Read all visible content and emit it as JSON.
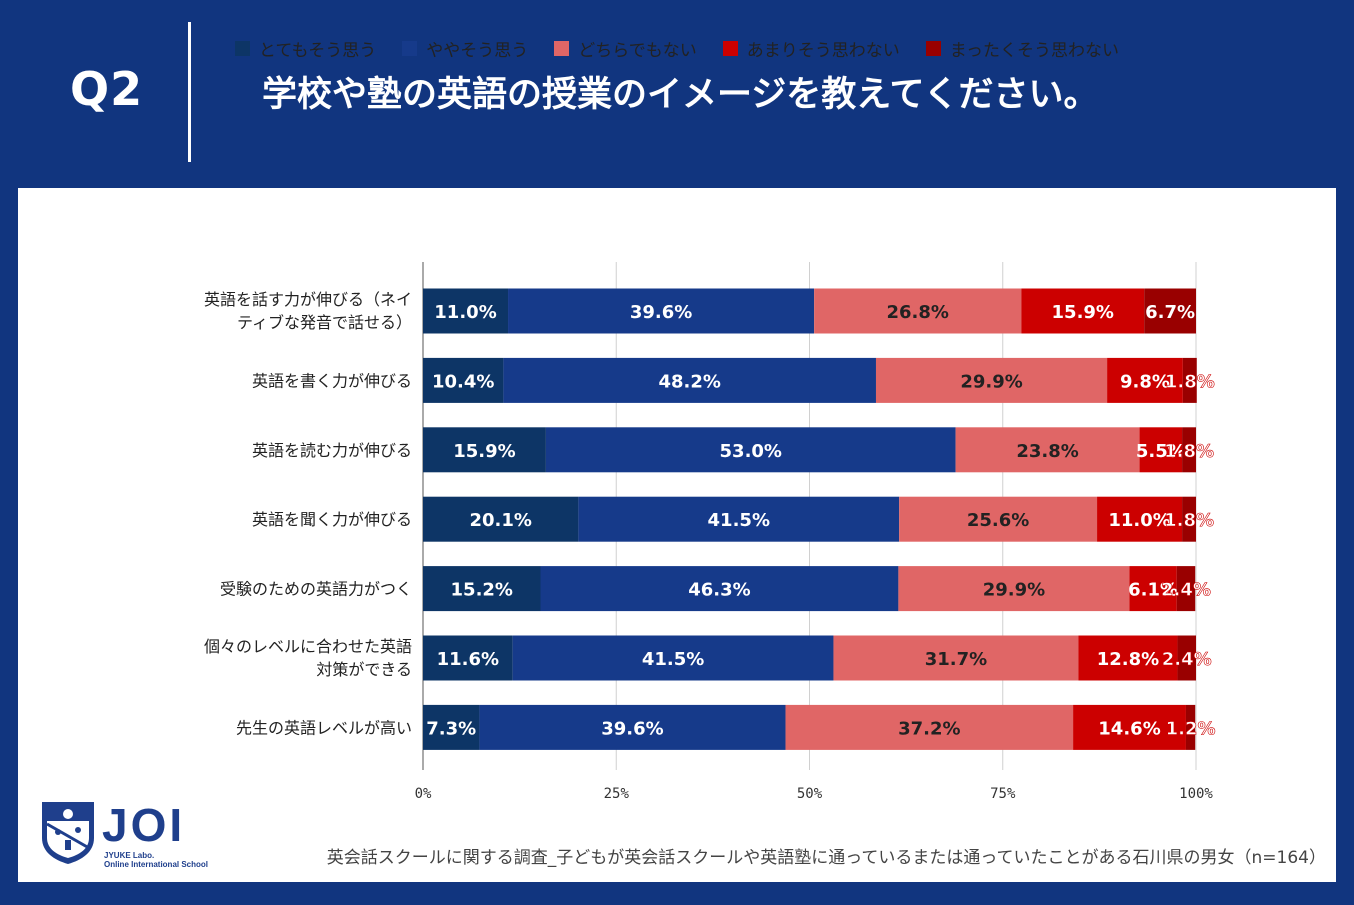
{
  "header": {
    "q_label": "Q2",
    "question": "学校や塾の英語の授業のイメージを教えてください。"
  },
  "colors": {
    "background": "#11357f",
    "panel": "#ffffff"
  },
  "chart_data": {
    "type": "bar",
    "orientation": "horizontal",
    "stacked": true,
    "categories": [
      [
        "英語を話す力が伸びる（ネイ",
        "ティブな発音で話せる）"
      ],
      [
        "英語を書く力が伸びる"
      ],
      [
        "英語を読む力が伸びる"
      ],
      [
        "英語を聞く力が伸びる"
      ],
      [
        "受験のための英語力がつく"
      ],
      [
        "個々のレベルに合わせた英語",
        "対策ができる"
      ],
      [
        "先生の英語レベルが高い"
      ]
    ],
    "series": [
      {
        "name": "とてもそう思う",
        "color": "#0d3566",
        "label_color": "#ffffff",
        "values": [
          11.0,
          10.4,
          15.9,
          20.1,
          15.2,
          11.6,
          7.3
        ],
        "labels": [
          "11.0%",
          "10.4%",
          "15.9%",
          "20.1%",
          "15.2%",
          "11.6%",
          "7.3%"
        ]
      },
      {
        "name": "ややそう思う",
        "color": "#163a8a",
        "label_color": "#ffffff",
        "values": [
          39.6,
          48.2,
          53.0,
          41.5,
          46.3,
          41.5,
          39.6
        ],
        "labels": [
          "39.6%",
          "48.2%",
          "53.0%",
          "41.5%",
          "46.3%",
          "41.5%",
          "39.6%"
        ]
      },
      {
        "name": "どちらでもない",
        "color": "#e06666",
        "label_color": "#222222",
        "values": [
          26.8,
          29.9,
          23.8,
          25.6,
          29.9,
          31.7,
          37.2
        ],
        "labels": [
          "26.8%",
          "29.9%",
          "23.8%",
          "25.6%",
          "29.9%",
          "31.7%",
          "37.2%"
        ]
      },
      {
        "name": "あまりそう思わない",
        "color": "#cc0000",
        "label_color": "#ffffff",
        "values": [
          15.9,
          9.8,
          5.5,
          11.0,
          6.1,
          12.8,
          14.6
        ],
        "labels": [
          "15.9%",
          "9.8%",
          "5.5%",
          "11.0%",
          "6.1%",
          "12.8%",
          "14.6%"
        ]
      },
      {
        "name": "まったくそう思わない",
        "color": "#990000",
        "label_color": "#ffffff",
        "values": [
          6.7,
          1.8,
          1.8,
          1.8,
          2.4,
          2.4,
          1.2
        ],
        "labels": [
          "6.7%",
          "1.8%",
          "1.8%",
          "1.8%",
          "2.4%",
          "2.4%",
          "1.2%"
        ]
      }
    ],
    "x_ticks": [
      "0%",
      "25%",
      "50%",
      "75%",
      "100%"
    ],
    "xlim": [
      0,
      100
    ],
    "legend": "top-center"
  },
  "footer": {
    "logo_text": "JOI",
    "logo_sub1": "JYUKE Labo.",
    "logo_sub2": "Online International School",
    "source": "英会話スクールに関する調査_子どもが英会話スクールや英語塾に通っているまたは通っていたことがある石川県の男女（n=164）"
  }
}
